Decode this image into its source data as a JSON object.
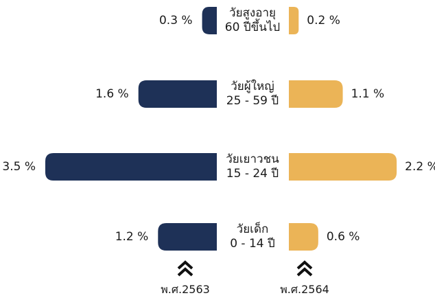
{
  "chart_data": {
    "type": "bar",
    "orientation": "horizontal-butterfly",
    "categories": [
      {
        "line1": "วัยสูงอายุ",
        "line2": "60 ปีขึ้นไป"
      },
      {
        "line1": "วัยผู้ใหญ่",
        "line2": "25 - 59 ปี"
      },
      {
        "line1": "วัยเยาวชน",
        "line2": "15 - 24 ปี"
      },
      {
        "line1": "วัยเด็ก",
        "line2": "0 - 14 ปี"
      }
    ],
    "series": [
      {
        "name": "พ.ศ.2563",
        "color": "#1e3157",
        "side": "left",
        "values": [
          0.3,
          1.6,
          3.5,
          1.2
        ],
        "labels": [
          "0.3 %",
          "1.6 %",
          "3.5 %",
          "1.2 %"
        ]
      },
      {
        "name": "พ.ศ.2564",
        "color": "#ebb457",
        "side": "right",
        "values": [
          0.2,
          1.1,
          2.2,
          0.6
        ],
        "labels": [
          "0.2 %",
          "1.1 %",
          "2.2 %",
          "0.6 %"
        ]
      }
    ],
    "xlim": [
      0,
      3.5
    ],
    "grid": false,
    "legend": "bottom"
  }
}
